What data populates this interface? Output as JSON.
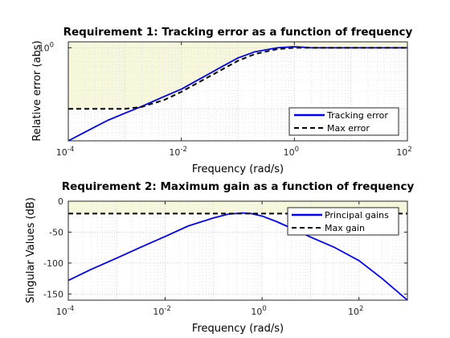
{
  "chart_data": [
    {
      "type": "line",
      "title": "Requirement 1: Tracking error as a function of frequency",
      "xlabel": "Frequency (rad/s)",
      "ylabel": "Relative error (abs)",
      "xscale": "log",
      "yscale": "log",
      "xlim": [
        0.0001,
        100
      ],
      "ylim": [
        0.03,
        1.25
      ],
      "xticks": [
        0.0001,
        0.01,
        1,
        100
      ],
      "xtick_labels": [
        {
          "base": "10",
          "exp": "-4"
        },
        {
          "base": "10",
          "exp": "-2"
        },
        {
          "base": "10",
          "exp": "0"
        },
        {
          "base": "10",
          "exp": "2"
        }
      ],
      "yticks": [
        1
      ],
      "ytick_labels": [
        {
          "base": "10",
          "exp": "0"
        }
      ],
      "grid": true,
      "shaded_region": "above Max error",
      "legend": {
        "location": "lower right",
        "entries": [
          "Tracking error",
          "Max error"
        ]
      },
      "series": [
        {
          "name": "Tracking error",
          "color": "#0000ff",
          "style": "solid",
          "x": [
            0.0001,
            0.0002,
            0.0005,
            0.001,
            0.002,
            0.005,
            0.01,
            0.02,
            0.05,
            0.1,
            0.2,
            0.5,
            1,
            2,
            5,
            10,
            100
          ],
          "y": [
            0.03,
            0.042,
            0.065,
            0.085,
            0.11,
            0.16,
            0.21,
            0.3,
            0.48,
            0.68,
            0.86,
            1.0,
            1.04,
            1.0,
            1.0,
            1.0,
            1.0
          ]
        },
        {
          "name": "Max error",
          "color": "#000000",
          "style": "dashed",
          "x": [
            0.0001,
            0.001,
            0.002,
            0.005,
            0.01,
            0.02,
            0.05,
            0.1,
            0.2,
            0.5,
            1,
            2,
            5,
            10,
            100
          ],
          "y": [
            0.1,
            0.1,
            0.108,
            0.14,
            0.19,
            0.27,
            0.43,
            0.61,
            0.79,
            0.95,
            1.0,
            1.0,
            1.0,
            1.0,
            1.0
          ]
        }
      ]
    },
    {
      "type": "line",
      "title": "Requirement 2: Maximum gain as a function of frequency",
      "xlabel": "Frequency (rad/s)",
      "ylabel": "Singular Values (dB)",
      "xscale": "log",
      "xlim": [
        0.0001,
        1000
      ],
      "ylim": [
        -160,
        0
      ],
      "xticks": [
        0.0001,
        0.01,
        1,
        100
      ],
      "xtick_labels": [
        {
          "base": "10",
          "exp": "-4"
        },
        {
          "base": "10",
          "exp": "-2"
        },
        {
          "base": "10",
          "exp": "0"
        },
        {
          "base": "10",
          "exp": "2"
        }
      ],
      "yticks": [
        0,
        -50,
        -100,
        -150
      ],
      "ytick_labels": [
        "0",
        "-50",
        "-100",
        "-150"
      ],
      "grid": true,
      "shaded_region": "above Max gain",
      "legend": {
        "location": "upper right",
        "entries": [
          "Principal gains",
          "Max gain"
        ]
      },
      "series": [
        {
          "name": "Principal gains",
          "color": "#0000ff",
          "style": "solid",
          "x": [
            0.0001,
            0.0003,
            0.001,
            0.003,
            0.01,
            0.03,
            0.1,
            0.2,
            0.4,
            0.6,
            1,
            2,
            5,
            10,
            30,
            100,
            300,
            1000
          ],
          "y": [
            -128,
            -110,
            -92,
            -75,
            -57,
            -40,
            -27,
            -21,
            -19,
            -20,
            -24,
            -33,
            -47,
            -58,
            -74,
            -96,
            -125,
            -160
          ]
        },
        {
          "name": "Max gain",
          "color": "#000000",
          "style": "dashed",
          "x": [
            0.0001,
            1000
          ],
          "y": [
            -20,
            -20
          ]
        }
      ]
    }
  ]
}
